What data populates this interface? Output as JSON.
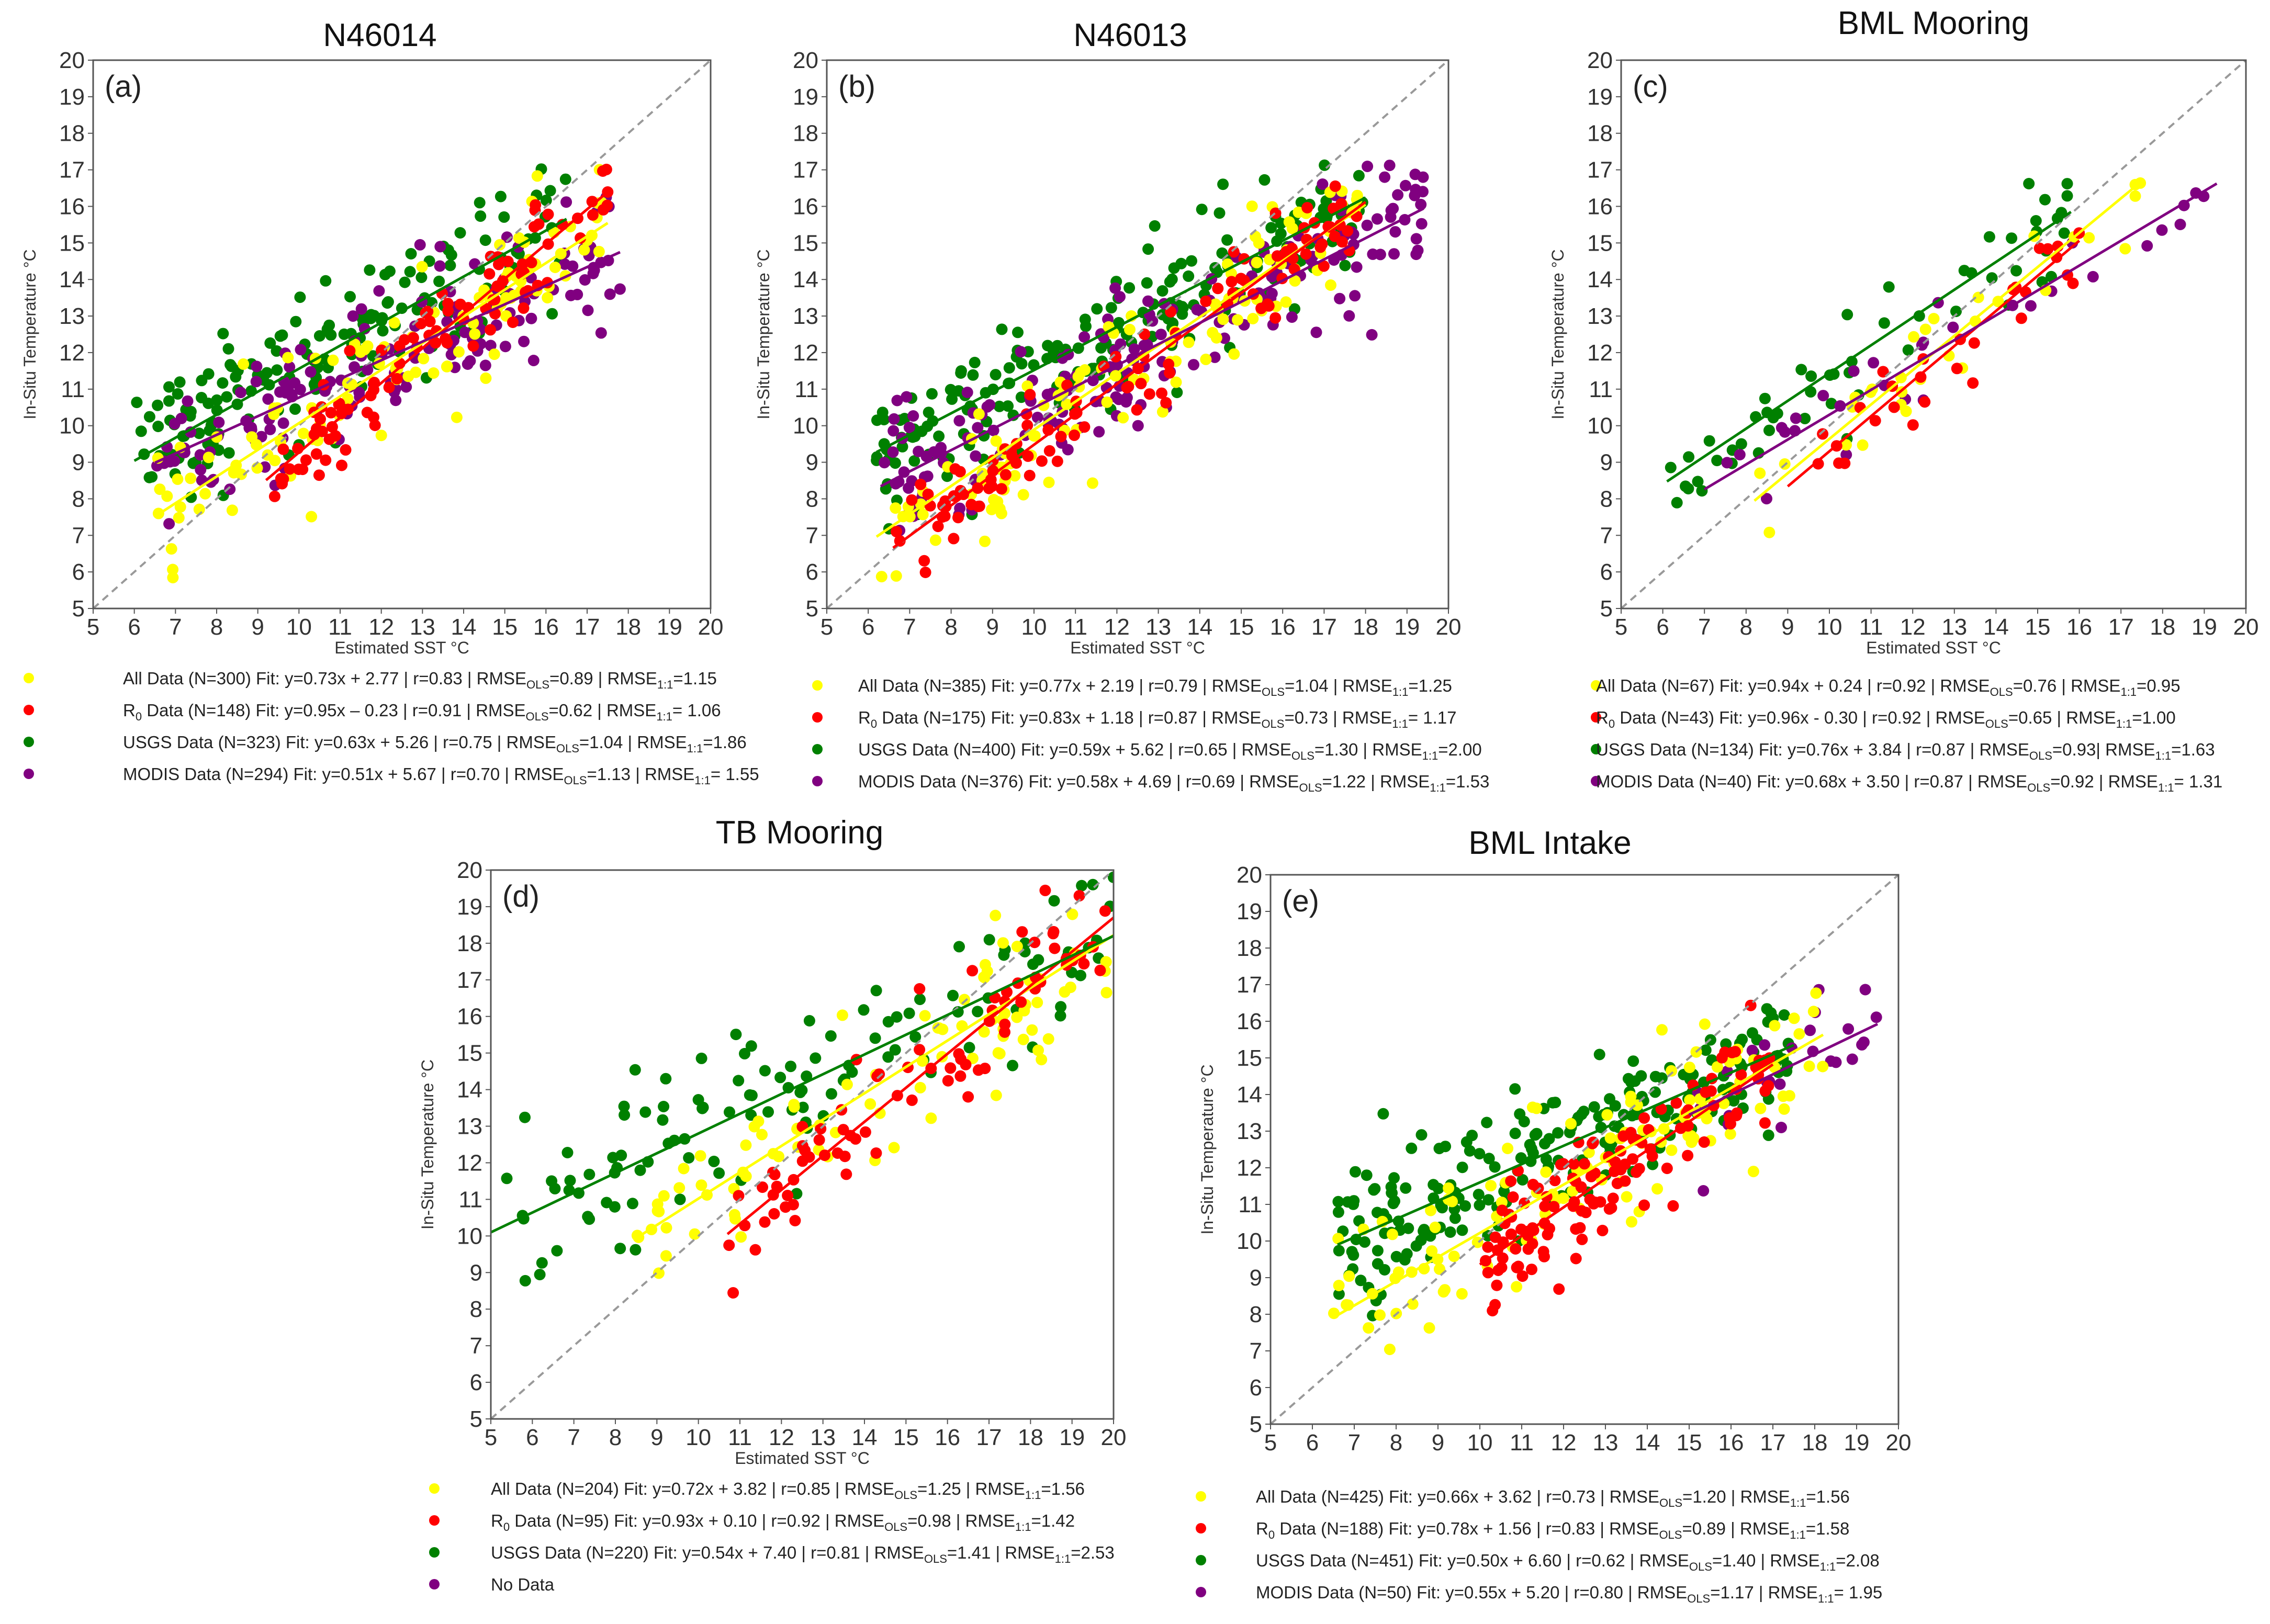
{
  "colors": {
    "all": "#ffff00",
    "r0": "#ff0000",
    "usgs": "#008000",
    "modis": "#800080",
    "one_to_one": "#999999"
  },
  "chart_data": [
    {
      "type": "scatter",
      "title": "N46014",
      "panel_label": "(a)",
      "xlabel": "Estimated SST  °C",
      "ylabel": "In-Situ Temperature °C",
      "xlim": [
        5,
        20
      ],
      "ylim": [
        5,
        20
      ],
      "xticks": [
        "5",
        "6",
        "7",
        "8",
        "9",
        "10",
        "11",
        "12",
        "13",
        "14",
        "15",
        "16",
        "17",
        "18",
        "19",
        "20"
      ],
      "yticks": [
        "5",
        "6",
        "7",
        "8",
        "9",
        "10",
        "11",
        "12",
        "13",
        "14",
        "15",
        "16",
        "17",
        "18",
        "19",
        "20"
      ],
      "one_to_one_line": true,
      "series": [
        {
          "key": "all",
          "name": "All Data",
          "n": 300,
          "slope": 0.73,
          "intercept": 2.77,
          "x_range": [
            6.5,
            17.5
          ],
          "spread": 1.1,
          "plot_n": 110,
          "label_main": "All Data (N=300) Fit: y=0.73x + 2.77 | r=0.83 | RMSE",
          "label_ols": "=0.89 | RMSE",
          "label_11": "=1.15"
        },
        {
          "key": "r0",
          "name": "R0 Data",
          "n": 148,
          "slope": 0.95,
          "intercept": -0.23,
          "x_range": [
            9.2,
            17.5
          ],
          "spread": 0.6,
          "plot_n": 100,
          "label_main": "Data (N=148) Fit: y=0.95x – 0.23  | r=0.91 | RMSE",
          "label_ols": "=0.62  | RMSE",
          "label_11": "= 1.06"
        },
        {
          "key": "usgs",
          "name": "USGS Data",
          "n": 323,
          "slope": 0.63,
          "intercept": 5.26,
          "x_range": [
            6.0,
            16.5
          ],
          "spread": 1.0,
          "plot_n": 170,
          "label_main": "USGS Data (N=323) Fit: y=0.63x + 5.26 | r=0.75 | RMSE",
          "label_ols": "=1.04 | RMSE",
          "label_11": "=1.86"
        },
        {
          "key": "modis",
          "name": "MODIS Data",
          "n": 294,
          "slope": 0.51,
          "intercept": 5.67,
          "x_range": [
            6.5,
            17.8
          ],
          "spread": 0.9,
          "plot_n": 150,
          "label_main": "MODIS Data (N=294) Fit: y=0.51x + 5.67 | r=0.70 | RMSE",
          "label_ols": "=1.13 | RMSE",
          "label_11": "= 1.55"
        }
      ]
    },
    {
      "type": "scatter",
      "title": "N46013",
      "panel_label": "(b)",
      "xlabel": "Estimated SST  °C",
      "ylabel": "In-Situ Temperature °C",
      "xlim": [
        5,
        20
      ],
      "ylim": [
        5,
        20
      ],
      "xticks": [
        "5",
        "6",
        "7",
        "8",
        "9",
        "10",
        "11",
        "12",
        "13",
        "14",
        "15",
        "16",
        "17",
        "18",
        "19",
        "20"
      ],
      "yticks": [
        "5",
        "6",
        "7",
        "8",
        "9",
        "10",
        "11",
        "12",
        "13",
        "14",
        "15",
        "16",
        "17",
        "18",
        "19",
        "20"
      ],
      "one_to_one_line": true,
      "series": [
        {
          "key": "all",
          "name": "All Data",
          "n": 385,
          "slope": 0.77,
          "intercept": 2.19,
          "x_range": [
            6.2,
            18.0
          ],
          "spread": 1.1,
          "plot_n": 110,
          "label_main": "All Data (N=385) Fit: y=0.77x + 2.19 | r=0.79 | RMSE",
          "label_ols": "=1.04 | RMSE",
          "label_11": "=1.25"
        },
        {
          "key": "r0",
          "name": "R0 Data",
          "n": 175,
          "slope": 0.83,
          "intercept": 1.18,
          "x_range": [
            6.6,
            18.0
          ],
          "spread": 0.7,
          "plot_n": 110,
          "label_main": "Data (N=175) Fit: y=0.83x + 1.18  | r=0.87 | RMSE",
          "label_ols": "=0.73  | RMSE",
          "label_11": "= 1.17"
        },
        {
          "key": "usgs",
          "name": "USGS Data",
          "n": 400,
          "slope": 0.59,
          "intercept": 5.62,
          "x_range": [
            6.2,
            18.0
          ],
          "spread": 1.0,
          "plot_n": 200,
          "label_main": "USGS Data (N=400) Fit: y=0.59x + 5.62 | r=0.65 | RMSE",
          "label_ols": "=1.30 | RMSE",
          "label_11": "=2.00"
        },
        {
          "key": "modis",
          "name": "MODIS Data",
          "n": 376,
          "slope": 0.58,
          "intercept": 4.69,
          "x_range": [
            6.3,
            19.4
          ],
          "spread": 0.9,
          "plot_n": 190,
          "label_main": "MODIS Data (N=376) Fit: y=0.58x + 4.69 | r=0.69 | RMSE",
          "label_ols": "=1.22 | RMSE",
          "label_11": "=1.53"
        }
      ]
    },
    {
      "type": "scatter",
      "title": "BML Mooring",
      "panel_label": "(c)",
      "xlabel": "Estimated SST  °C",
      "ylabel": "In-Situ Temperature °C",
      "xlim": [
        5,
        20
      ],
      "ylim": [
        5,
        20
      ],
      "xticks": [
        "5",
        "6",
        "7",
        "8",
        "9",
        "10",
        "11",
        "12",
        "13",
        "14",
        "15",
        "16",
        "17",
        "18",
        "19",
        "20"
      ],
      "yticks": [
        "5",
        "6",
        "7",
        "8",
        "9",
        "10",
        "11",
        "12",
        "13",
        "14",
        "15",
        "16",
        "17",
        "18",
        "19",
        "20"
      ],
      "one_to_one_line": true,
      "series": [
        {
          "key": "all",
          "name": "All Data",
          "n": 67,
          "slope": 0.94,
          "intercept": 0.24,
          "x_range": [
            8.2,
            17.5
          ],
          "spread": 0.7,
          "plot_n": 30,
          "label_main": "All Data (N=67) Fit: y=0.94x + 0.24 | r=0.92 | RMSE",
          "label_ols": "=0.76 | RMSE",
          "label_11": "=0.95"
        },
        {
          "key": "r0",
          "name": "R0 Data",
          "n": 43,
          "slope": 0.96,
          "intercept": -0.3,
          "x_range": [
            9.0,
            16.0
          ],
          "spread": 0.6,
          "plot_n": 30,
          "label_main": "Data (N=43) Fit: y=0.96x - 0.30  | r=0.92 | RMSE",
          "label_ols": "=0.65  | RMSE",
          "label_11": "=1.00"
        },
        {
          "key": "usgs",
          "name": "USGS Data",
          "n": 134,
          "slope": 0.76,
          "intercept": 3.84,
          "x_range": [
            6.1,
            15.8
          ],
          "spread": 0.8,
          "plot_n": 55,
          "label_main": "USGS Data (N=134) Fit: y=0.76x + 3.84 | r=0.87 | RMSE",
          "label_ols": "=0.93| RMSE",
          "label_11": "=1.63"
        },
        {
          "key": "modis",
          "name": "MODIS Data",
          "n": 40,
          "slope": 0.68,
          "intercept": 3.5,
          "x_range": [
            7.0,
            19.3
          ],
          "spread": 0.7,
          "plot_n": 30,
          "label_main": "MODIS Data (N=40) Fit: y=0.68x + 3.50 | r=0.87 | RMSE",
          "label_ols": "=0.92 | RMSE",
          "label_11": "= 1.31"
        }
      ]
    },
    {
      "type": "scatter",
      "title": "TB Mooring",
      "panel_label": "(d)",
      "xlabel": "Estimated SST  °C",
      "ylabel": "In-Situ Temperature °C",
      "xlim": [
        5,
        20
      ],
      "ylim": [
        5,
        20
      ],
      "xticks": [
        "5",
        "6",
        "7",
        "8",
        "9",
        "10",
        "11",
        "12",
        "13",
        "14",
        "15",
        "16",
        "17",
        "18",
        "19",
        "20"
      ],
      "yticks": [
        "5",
        "6",
        "7",
        "8",
        "9",
        "10",
        "11",
        "12",
        "13",
        "14",
        "15",
        "16",
        "17",
        "18",
        "19",
        "20"
      ],
      "one_to_one_line": true,
      "series": [
        {
          "key": "all",
          "name": "All Data",
          "n": 204,
          "slope": 0.72,
          "intercept": 3.82,
          "x_range": [
            8.5,
            20.0
          ],
          "spread": 1.1,
          "plot_n": 90,
          "label_main": "All Data (N=204) Fit: y=0.72x + 3.82 | r=0.85 | RMSE",
          "label_ols": "=1.25 | RMSE",
          "label_11": "=1.56"
        },
        {
          "key": "r0",
          "name": "R0 Data",
          "n": 95,
          "slope": 0.93,
          "intercept": 0.1,
          "x_range": [
            10.7,
            20.0
          ],
          "spread": 0.8,
          "plot_n": 80,
          "label_main": "Data (N=95) Fit: y=0.93x + 0.10  | r=0.92 | RMSE",
          "label_ols": "=0.98  | RMSE",
          "label_11": "=1.42"
        },
        {
          "key": "usgs",
          "name": "USGS Data",
          "n": 220,
          "slope": 0.54,
          "intercept": 7.4,
          "x_range": [
            5.0,
            20.0
          ],
          "spread": 1.2,
          "plot_n": 120,
          "label_main": "USGS Data (N=220) Fit: y=0.54x + 7.40 | r=0.81 | RMSE",
          "label_ols": "=1.41 | RMSE",
          "label_11": "=2.53"
        },
        {
          "key": "modis",
          "name": "No Data",
          "n": 0,
          "plot_n": 0,
          "label_main": "No Data"
        }
      ]
    },
    {
      "type": "scatter",
      "title": "BML Intake",
      "panel_label": "(e)",
      "xlabel": "",
      "ylabel": "In-Situ Temperature °C",
      "xlim": [
        5,
        20
      ],
      "ylim": [
        5,
        20
      ],
      "xticks": [
        "5",
        "6",
        "7",
        "8",
        "9",
        "10",
        "11",
        "12",
        "13",
        "14",
        "15",
        "16",
        "17",
        "18",
        "19",
        "20"
      ],
      "yticks": [
        "5",
        "6",
        "7",
        "8",
        "9",
        "10",
        "11",
        "12",
        "13",
        "14",
        "15",
        "16",
        "17",
        "18",
        "19",
        "20"
      ],
      "one_to_one_line": true,
      "series": [
        {
          "key": "all",
          "name": "All Data",
          "n": 425,
          "slope": 0.66,
          "intercept": 3.62,
          "x_range": [
            6.5,
            18.2
          ],
          "spread": 1.0,
          "plot_n": 120,
          "label_main": "All Data (N=425) Fit: y=0.66x + 3.62 | r=0.73 | RMSE",
          "label_ols": "=1.20 | RMSE",
          "label_11": "=1.56"
        },
        {
          "key": "r0",
          "name": "R0 Data",
          "n": 188,
          "slope": 0.78,
          "intercept": 1.56,
          "x_range": [
            10.0,
            17.0
          ],
          "spread": 0.8,
          "plot_n": 130,
          "label_main": "Data (N=188) Fit: y=0.78x + 1.56  | r=0.83 | RMSE",
          "label_ols": "=0.89  | RMSE",
          "label_11": "=1.58"
        },
        {
          "key": "usgs",
          "name": "USGS Data",
          "n": 451,
          "slope": 0.5,
          "intercept": 6.6,
          "x_range": [
            6.6,
            17.5
          ],
          "spread": 1.0,
          "plot_n": 220,
          "label_main": "USGS Data (N=451) Fit: y=0.50x + 6.60 | r=0.62 | RMSE",
          "label_ols": "=1.40 | RMSE",
          "label_11": "=2.08"
        },
        {
          "key": "modis",
          "name": "MODIS Data",
          "n": 50,
          "slope": 0.55,
          "intercept": 5.2,
          "x_range": [
            15.0,
            19.5
          ],
          "spread": 0.6,
          "plot_n": 25,
          "label_main": "MODIS Data (N=50) Fit: y=0.55x + 5.20 | r=0.80 | RMSE",
          "label_ols": "=1.17 | RMSE",
          "label_11": "= 1.95"
        }
      ]
    }
  ]
}
